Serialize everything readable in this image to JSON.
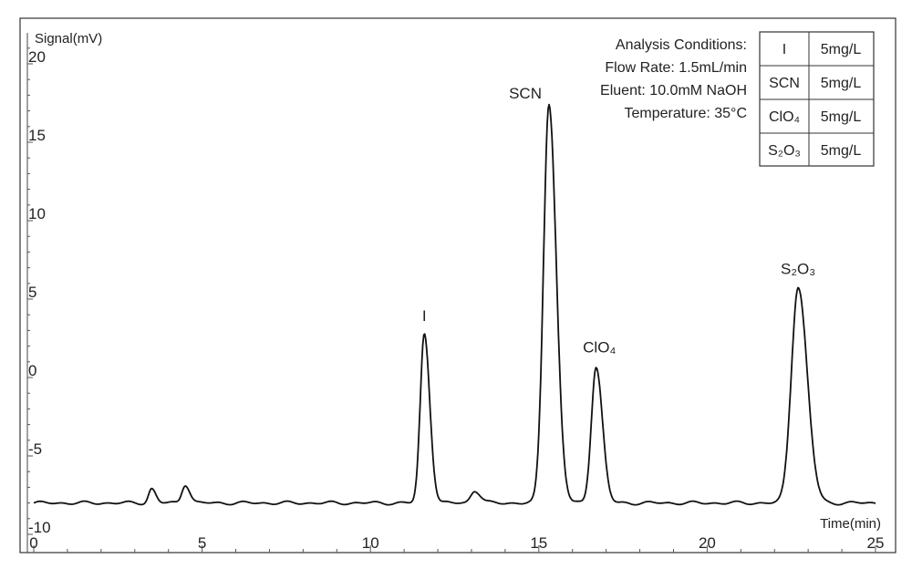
{
  "chart_data": {
    "type": "line",
    "title": "",
    "ylabel": "Signal(mV)",
    "xlabel": "Time(min)",
    "xlim": [
      0,
      25
    ],
    "ylim": [
      -10,
      22
    ],
    "xticks": [
      "0",
      "5",
      "10",
      "15",
      "20",
      "25"
    ],
    "yticks": [
      "-10",
      "-5",
      "0",
      "5",
      "10",
      "15",
      "20"
    ],
    "grid": false,
    "baseline": -8.0,
    "series": [
      {
        "peaks": [
          {
            "label": "",
            "x": 3.5,
            "y": -7.1
          },
          {
            "label": "",
            "x": 4.5,
            "y": -6.8
          },
          {
            "label": "I",
            "x": 11.6,
            "y": 2.8
          },
          {
            "label": "",
            "x": 13.1,
            "y": -7.2
          },
          {
            "label": "SCN",
            "x": 15.3,
            "y": 17.5
          },
          {
            "label": "ClO4",
            "x": 16.7,
            "y": 0.7
          },
          {
            "label": "S2O3",
            "x": 22.7,
            "y": 5.8
          }
        ]
      }
    ],
    "peak_labels": [
      {
        "text": "I",
        "x": 11.6,
        "y": 3.6
      },
      {
        "text": "SCN",
        "x": 14.6,
        "y": 17.8
      },
      {
        "text": "ClO₄",
        "x": 16.8,
        "y": 1.6
      },
      {
        "text": "S₂O₃",
        "x": 22.7,
        "y": 6.6
      }
    ],
    "annotations": {
      "conditions": [
        "Analysis Conditions:",
        "Flow Rate: 1.5mL/min",
        "Eluent: 10.0mM NaOH",
        "Temperature: 35°C"
      ],
      "table": [
        [
          "I",
          "5mg/L"
        ],
        [
          "SCN",
          "5mg/L"
        ],
        [
          "ClO₄",
          "5mg/L"
        ],
        [
          "S₂O₃",
          "5mg/L"
        ]
      ]
    }
  }
}
